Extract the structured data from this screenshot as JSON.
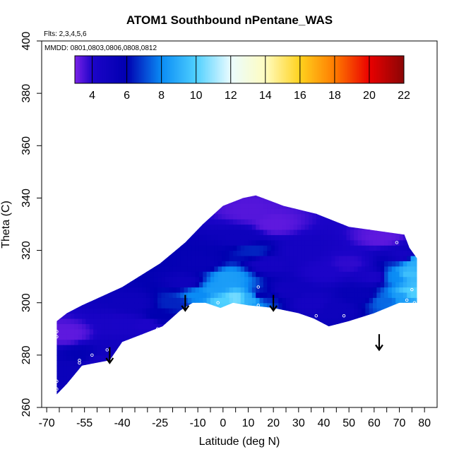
{
  "chart_data": {
    "type": "heatmap",
    "title": "ATOM1 Southbound nPentane_WAS",
    "subtitle_flights": "Flts: 2,3,4,5,6",
    "subtitle_dates": "MMDD: 0801,0803,0806,0808,0812",
    "xlabel": "Latitude (deg N)",
    "ylabel": "Theta (C)",
    "xlim": [
      -72,
      85
    ],
    "ylim": [
      260,
      400
    ],
    "x_ticks": [
      -70,
      -55,
      -40,
      -25,
      -10,
      0,
      10,
      20,
      30,
      40,
      50,
      60,
      70,
      80
    ],
    "x_tick_labels": [
      "-70",
      "-55",
      "-40",
      "-25",
      "-10",
      "0",
      "10",
      "20",
      "30",
      "40",
      "50",
      "60",
      "70",
      "80"
    ],
    "x_minor_ticks": [
      -65,
      -60,
      -50,
      -45,
      -35,
      -30,
      -20,
      -15,
      -5,
      5,
      15,
      25,
      35,
      45,
      55,
      65,
      75
    ],
    "y_ticks": [
      260,
      280,
      300,
      320,
      340,
      360,
      380,
      400
    ],
    "y_tick_labels": [
      "260",
      "280",
      "300",
      "320",
      "340",
      "360",
      "380",
      "400"
    ],
    "colorbar": {
      "range": [
        3,
        22
      ],
      "ticks": [
        4,
        6,
        8,
        10,
        12,
        14,
        16,
        18,
        20,
        22
      ],
      "tick_labels": [
        "4",
        "6",
        "8",
        "10",
        "12",
        "14",
        "16",
        "18",
        "20",
        "22"
      ],
      "stops": [
        {
          "value": 3,
          "color": "#7b22e8"
        },
        {
          "value": 4,
          "color": "#1c04c8"
        },
        {
          "value": 6,
          "color": "#0000b0"
        },
        {
          "value": 8,
          "color": "#0a8cf5"
        },
        {
          "value": 10,
          "color": "#4fd0ff"
        },
        {
          "value": 12,
          "color": "#eafcff"
        },
        {
          "value": 14,
          "color": "#fffcc0"
        },
        {
          "value": 16,
          "color": "#ffd21e"
        },
        {
          "value": 18,
          "color": "#ff7b00"
        },
        {
          "value": 20,
          "color": "#ea0000"
        },
        {
          "value": 22,
          "color": "#8a0606"
        }
      ]
    },
    "region_lower_boundary": [
      [
        -66,
        265
      ],
      [
        -62,
        269
      ],
      [
        -56,
        276
      ],
      [
        -45,
        278
      ],
      [
        -40,
        285
      ],
      [
        -32,
        288
      ],
      [
        -24,
        291
      ],
      [
        -17,
        297
      ],
      [
        -12,
        300
      ],
      [
        -7,
        300
      ],
      [
        -1,
        298
      ],
      [
        4,
        300
      ],
      [
        10,
        299
      ],
      [
        20,
        298
      ],
      [
        30,
        296
      ],
      [
        36,
        294
      ],
      [
        42,
        291
      ],
      [
        50,
        293
      ],
      [
        60,
        296
      ],
      [
        70,
        300
      ],
      [
        77,
        300
      ]
    ],
    "region_upper_boundary": [
      [
        77,
        300
      ],
      [
        77,
        317
      ],
      [
        74,
        321
      ],
      [
        72,
        326
      ],
      [
        50,
        329
      ],
      [
        37,
        334
      ],
      [
        24,
        337
      ],
      [
        13,
        341
      ],
      [
        8,
        340
      ],
      [
        0,
        337
      ],
      [
        -8,
        330
      ],
      [
        -15,
        323
      ],
      [
        -25,
        315
      ],
      [
        -40,
        306
      ],
      [
        -56,
        299
      ],
      [
        -62,
        296
      ],
      [
        -66,
        293
      ]
    ],
    "field_points": [
      {
        "lat": -64,
        "theta": 275,
        "value": 5.2
      },
      {
        "lat": -62,
        "theta": 288,
        "value": 3.3
      },
      {
        "lat": -56,
        "theta": 280,
        "value": 5.8
      },
      {
        "lat": -50,
        "theta": 278,
        "value": 4.5
      },
      {
        "lat": -44,
        "theta": 281,
        "value": 4.8
      },
      {
        "lat": -40,
        "theta": 292,
        "value": 4.2
      },
      {
        "lat": -35,
        "theta": 300,
        "value": 5.0
      },
      {
        "lat": -30,
        "theta": 292,
        "value": 4.0
      },
      {
        "lat": -25,
        "theta": 295,
        "value": 6.0
      },
      {
        "lat": -20,
        "theta": 300,
        "value": 6.5
      },
      {
        "lat": -15,
        "theta": 308,
        "value": 5.0
      },
      {
        "lat": -10,
        "theta": 303,
        "value": 8.0
      },
      {
        "lat": -8,
        "theta": 315,
        "value": 5.5
      },
      {
        "lat": -3,
        "theta": 305,
        "value": 8.5
      },
      {
        "lat": 0,
        "theta": 301,
        "value": 10.0
      },
      {
        "lat": 2,
        "theta": 310,
        "value": 8.5
      },
      {
        "lat": 5,
        "theta": 302,
        "value": 10.5
      },
      {
        "lat": 8,
        "theta": 325,
        "value": 5.0
      },
      {
        "lat": 10,
        "theta": 335,
        "value": 3.4
      },
      {
        "lat": 11,
        "theta": 302,
        "value": 9.0
      },
      {
        "lat": 12,
        "theta": 320,
        "value": 6.5
      },
      {
        "lat": 15,
        "theta": 303,
        "value": 6.0
      },
      {
        "lat": 18,
        "theta": 315,
        "value": 4.5
      },
      {
        "lat": 20,
        "theta": 330,
        "value": 3.3
      },
      {
        "lat": 25,
        "theta": 305,
        "value": 4.8
      },
      {
        "lat": 30,
        "theta": 320,
        "value": 4.5
      },
      {
        "lat": 35,
        "theta": 300,
        "value": 4.5
      },
      {
        "lat": 40,
        "theta": 312,
        "value": 4.0
      },
      {
        "lat": 45,
        "theta": 298,
        "value": 5.0
      },
      {
        "lat": 50,
        "theta": 315,
        "value": 3.8
      },
      {
        "lat": 55,
        "theta": 303,
        "value": 5.5
      },
      {
        "lat": 60,
        "theta": 310,
        "value": 4.2
      },
      {
        "lat": 63,
        "theta": 325,
        "value": 3.3
      },
      {
        "lat": 65,
        "theta": 301,
        "value": 7.5
      },
      {
        "lat": 68,
        "theta": 310,
        "value": 8.0
      },
      {
        "lat": 71,
        "theta": 302,
        "value": 8.5
      },
      {
        "lat": 72,
        "theta": 318,
        "value": 4.5
      },
      {
        "lat": 74,
        "theta": 311,
        "value": 9.5
      },
      {
        "lat": 75,
        "theta": 304,
        "value": 10.0
      },
      {
        "lat": 76,
        "theta": 316,
        "value": 9.0
      }
    ],
    "sample_points": [
      {
        "lat": -66,
        "theta": 267
      },
      {
        "lat": -66,
        "theta": 270
      },
      {
        "lat": -66,
        "theta": 287
      },
      {
        "lat": -66,
        "theta": 289
      },
      {
        "lat": -57,
        "theta": 277
      },
      {
        "lat": -57,
        "theta": 278
      },
      {
        "lat": -52,
        "theta": 280
      },
      {
        "lat": -46,
        "theta": 282
      },
      {
        "lat": -43,
        "theta": 279
      },
      {
        "lat": -38,
        "theta": 283
      },
      {
        "lat": -31,
        "theta": 287
      },
      {
        "lat": -26,
        "theta": 290
      },
      {
        "lat": -13,
        "theta": 298
      },
      {
        "lat": -9,
        "theta": 299
      },
      {
        "lat": -2,
        "theta": 300
      },
      {
        "lat": 14,
        "theta": 306
      },
      {
        "lat": 14,
        "theta": 299
      },
      {
        "lat": 37,
        "theta": 295
      },
      {
        "lat": 48,
        "theta": 295
      },
      {
        "lat": 69,
        "theta": 323
      },
      {
        "lat": 73,
        "theta": 301
      },
      {
        "lat": 75,
        "theta": 305
      },
      {
        "lat": 76,
        "theta": 300
      }
    ],
    "profile_arrows": [
      {
        "lat": -45,
        "theta_top": 283,
        "theta_bottom": 277
      },
      {
        "lat": -15,
        "theta_top": 303,
        "theta_bottom": 297
      },
      {
        "lat": 20,
        "theta_top": 303,
        "theta_bottom": 297
      },
      {
        "lat": 62,
        "theta_top": 288,
        "theta_bottom": 282
      }
    ]
  }
}
